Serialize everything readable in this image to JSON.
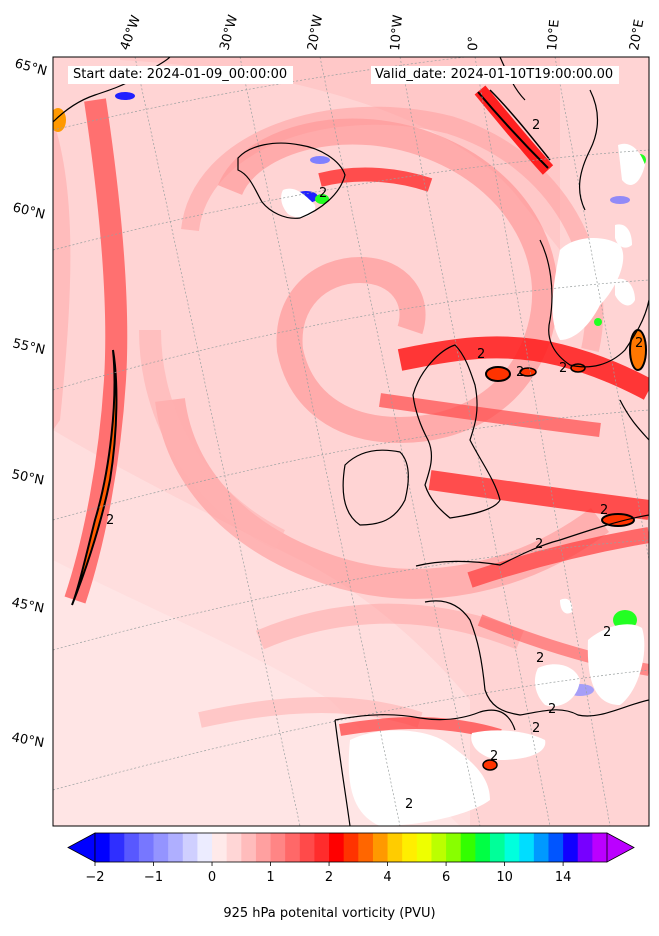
{
  "map": {
    "start_date": "Start date: 2024-01-09_00:00:00",
    "valid_date": "Valid_date: 2024-01-10T19:00:00.00",
    "lon_labels": [
      "40°W",
      "30°W",
      "20°W",
      "10°W",
      "0°",
      "10°E",
      "20°E"
    ],
    "lat_labels": [
      "65°N",
      "60°N",
      "55°N",
      "50°N",
      "45°N",
      "40°N"
    ],
    "contour_labels": [
      "2",
      "2",
      "2",
      "2",
      "2",
      "2",
      "2",
      "2",
      "2",
      "2",
      "2",
      "2",
      "2",
      "2",
      "2"
    ],
    "field": "925 hPa potential vorticity",
    "projection": "lambert-conformal",
    "coastline_color": "#000000",
    "graticule": true
  },
  "colorbar": {
    "title": "925 hPa potenital vorticity (PVU)",
    "tick_labels": [
      "−2",
      "−1",
      "0",
      "1",
      "2",
      "4",
      "6",
      "10",
      "14"
    ],
    "levels": [
      -2,
      -1.75,
      -1.5,
      -1.25,
      -1,
      -0.75,
      -0.5,
      -0.25,
      0,
      0.25,
      0.5,
      0.75,
      1,
      1.25,
      1.5,
      1.75,
      2,
      2.5,
      3,
      3.5,
      4,
      4.5,
      5,
      5.5,
      6,
      7,
      8,
      9,
      10,
      11,
      12,
      13,
      14,
      15,
      16
    ],
    "extend": "both",
    "colors": [
      "#0000ff",
      "#2f2fff",
      "#5858ff",
      "#7777ff",
      "#9494ff",
      "#afafff",
      "#cfcfff",
      "#ececff",
      "#ffeaea",
      "#ffd6d6",
      "#ffbcbc",
      "#ffa0a0",
      "#ff8585",
      "#ff6868",
      "#ff4a4a",
      "#ff2c2c",
      "#ff0000",
      "#ff3300",
      "#ff6600",
      "#ff9900",
      "#ffcc00",
      "#ffee00",
      "#eeff00",
      "#bbff00",
      "#88ff00",
      "#33ff00",
      "#00ff44",
      "#00ff99",
      "#00ffdd",
      "#00ddff",
      "#0099ff",
      "#0055ff",
      "#1100ff",
      "#7700ff",
      "#bb00ff"
    ]
  }
}
